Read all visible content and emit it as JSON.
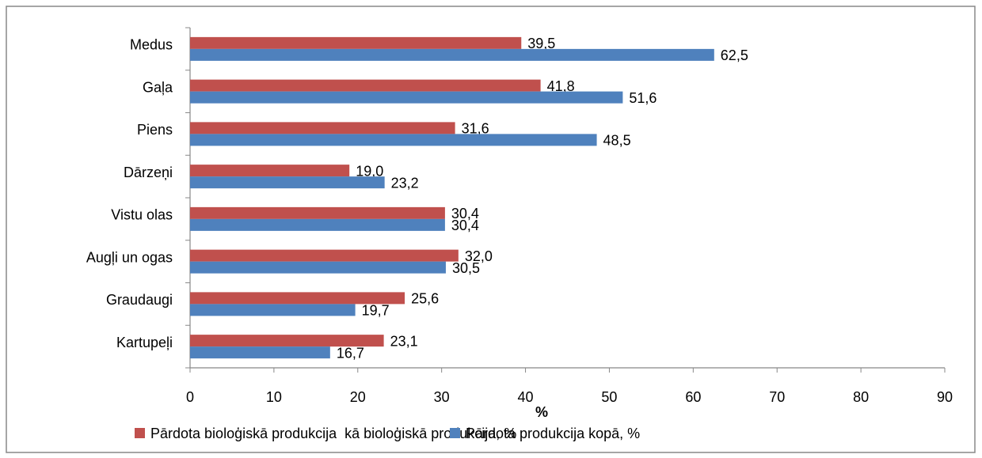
{
  "chart_data": {
    "type": "hbar",
    "categories": [
      "Medus",
      "Gaļa",
      "Piens",
      "Dārzeņi",
      "Vistu olas",
      "Augļi un ogas",
      "Graudaugi",
      "Kartupeļi"
    ],
    "series": [
      {
        "name": "Pārdota bioloģiskā produkcija  kā bioloģiskā produkcija, %",
        "color": "#c0504d",
        "values": [
          39.5,
          41.8,
          31.6,
          19.0,
          30.4,
          32.0,
          25.6,
          23.1
        ],
        "value_labels": [
          "39,5",
          "41,8",
          "31,6",
          "19,0",
          "30,4",
          "32,0",
          "25,6",
          "23,1"
        ]
      },
      {
        "name": "Pārdota produkcija kopā, %",
        "color": "#4f81bd",
        "values": [
          62.5,
          51.6,
          48.5,
          23.2,
          30.4,
          30.5,
          19.7,
          16.7
        ],
        "value_labels": [
          "62,5",
          "51,6",
          "48,5",
          "23,2",
          "30,4",
          "30,5",
          "19,7",
          "16,7"
        ]
      }
    ],
    "xlabel": "%",
    "xlim": [
      0,
      90
    ],
    "xticks": [
      0,
      10,
      20,
      30,
      40,
      50,
      60,
      70,
      80,
      90
    ],
    "legend": "bottom"
  }
}
